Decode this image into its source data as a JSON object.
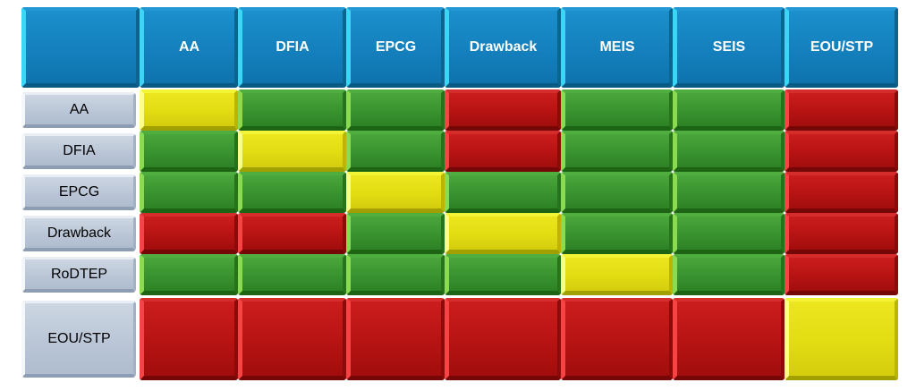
{
  "chart_data": {
    "type": "heatmap",
    "title": "",
    "corner_label": "",
    "columns": [
      "AA",
      "DFIA",
      "EPCG",
      "Drawback",
      "MEIS",
      "SEIS",
      "EOU/STP"
    ],
    "rows": [
      "AA",
      "DFIA",
      "EPCG",
      "Drawback",
      "RoDTEP",
      "EOU/STP"
    ],
    "cells": [
      [
        "yellow",
        "green",
        "green",
        "red",
        "green",
        "green",
        "red"
      ],
      [
        "green",
        "yellow",
        "green",
        "red",
        "green",
        "green",
        "red"
      ],
      [
        "green",
        "green",
        "yellow",
        "green",
        "green",
        "green",
        "red"
      ],
      [
        "red",
        "red",
        "green",
        "yellow",
        "green",
        "green",
        "red"
      ],
      [
        "green",
        "green",
        "green",
        "green",
        "yellow",
        "green",
        "red"
      ],
      [
        "red",
        "red",
        "red",
        "red",
        "red",
        "red",
        "yellow"
      ]
    ],
    "palette": {
      "green": "#3A9430",
      "red": "#B91414",
      "yellow": "#E2DC13",
      "header_blue": "#1480BD",
      "row_label_gray": "#BCC8D8",
      "header_text": "#FFFFFF",
      "row_label_text": "#000000"
    },
    "legend_position": "none",
    "grid": false
  }
}
